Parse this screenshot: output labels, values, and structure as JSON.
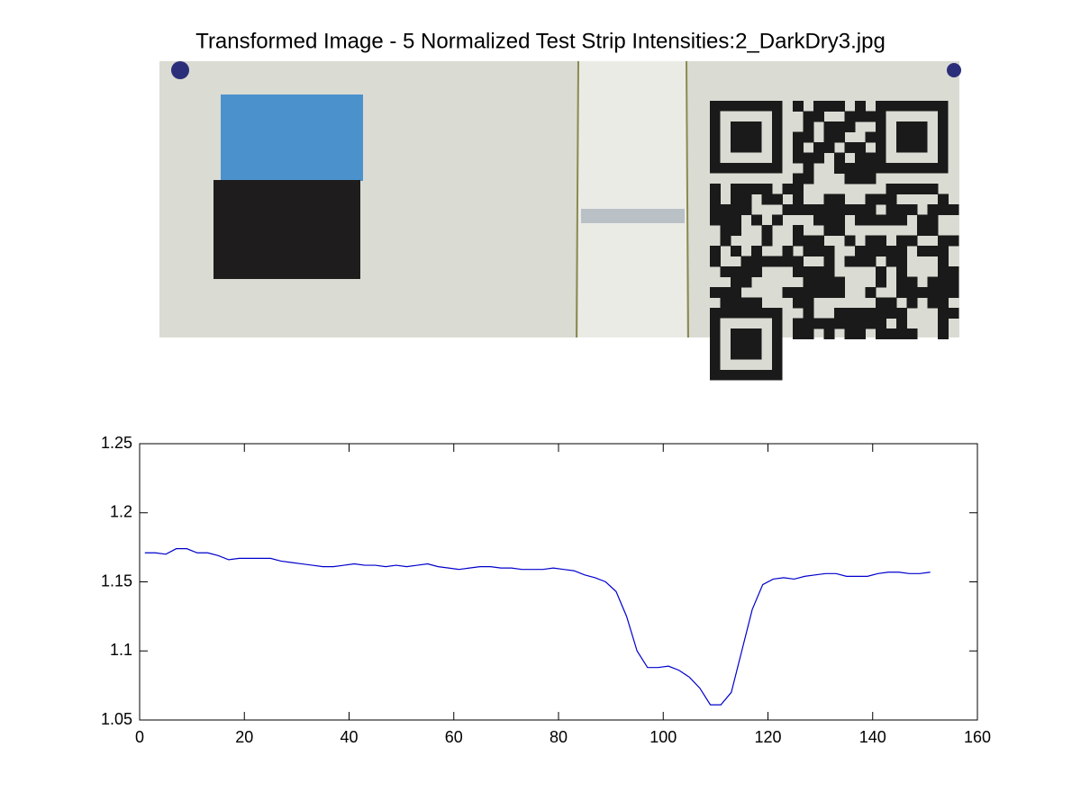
{
  "chart_data": {
    "type": "line",
    "title": "Transformed Image - 5 Normalized Test Strip Intensities:2_DarkDry3.jpg",
    "x": [
      1,
      3,
      5,
      7,
      9,
      11,
      13,
      15,
      17,
      19,
      21,
      23,
      25,
      27,
      29,
      31,
      33,
      35,
      37,
      39,
      41,
      43,
      45,
      47,
      49,
      51,
      53,
      55,
      57,
      59,
      61,
      63,
      65,
      67,
      69,
      71,
      73,
      75,
      77,
      79,
      81,
      83,
      85,
      87,
      89,
      91,
      93,
      95,
      97,
      99,
      101,
      103,
      105,
      107,
      109,
      111,
      113,
      115,
      117,
      119,
      121,
      123,
      125,
      127,
      129,
      131,
      133,
      135,
      137,
      139,
      141,
      143,
      145,
      147,
      149,
      151
    ],
    "series": [
      {
        "color": "#0000cc",
        "values": [
          1.171,
          1.171,
          1.17,
          1.174,
          1.174,
          1.171,
          1.171,
          1.169,
          1.166,
          1.167,
          1.167,
          1.167,
          1.167,
          1.165,
          1.164,
          1.163,
          1.162,
          1.161,
          1.161,
          1.162,
          1.163,
          1.162,
          1.162,
          1.161,
          1.162,
          1.161,
          1.162,
          1.163,
          1.161,
          1.16,
          1.159,
          1.16,
          1.161,
          1.161,
          1.16,
          1.16,
          1.159,
          1.159,
          1.159,
          1.16,
          1.159,
          1.158,
          1.155,
          1.153,
          1.15,
          1.143,
          1.125,
          1.1,
          1.088,
          1.088,
          1.089,
          1.086,
          1.081,
          1.073,
          1.061,
          1.061,
          1.07,
          1.1,
          1.13,
          1.148,
          1.152,
          1.153,
          1.152,
          1.154,
          1.155,
          1.156,
          1.156,
          1.154,
          1.154,
          1.154,
          1.156,
          1.157,
          1.157,
          1.156,
          1.156,
          1.157
        ]
      }
    ],
    "xlim": [
      0,
      160
    ],
    "xticks": [
      0,
      20,
      40,
      60,
      80,
      100,
      120,
      140,
      160
    ],
    "ylim": [
      1.05,
      1.25
    ],
    "yticks": [
      1.05,
      1.1,
      1.15,
      1.2,
      1.25
    ]
  }
}
